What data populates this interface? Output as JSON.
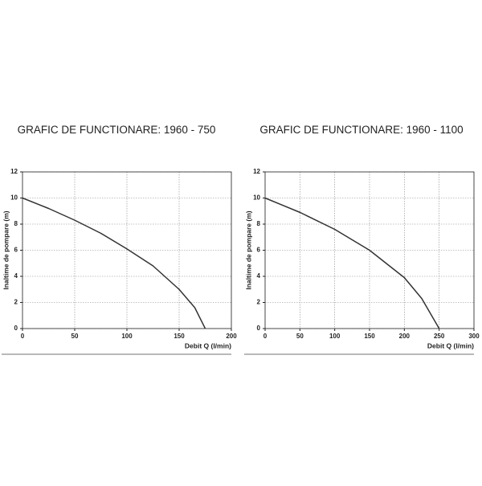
{
  "chart_data": [
    {
      "type": "line",
      "title": "GRAFIC DE FUNCTIONARE: 1960 - 750",
      "x_label": "Debit  Q (l/min)",
      "y_label": "Inaltime de pompare (m)",
      "x": [
        0,
        25,
        50,
        75,
        100,
        125,
        150,
        165,
        175
      ],
      "series": [
        {
          "color": "#333333",
          "values": [
            10,
            9.2,
            8.3,
            7.3,
            6.1,
            4.8,
            3.0,
            1.6,
            0
          ]
        }
      ],
      "xlim": [
        0,
        200
      ],
      "xticks": [
        0,
        50,
        100,
        150,
        200
      ],
      "ylim": [
        0,
        12
      ],
      "yticks": [
        0,
        2,
        4,
        6,
        8,
        10,
        12
      ],
      "grid": true
    },
    {
      "type": "line",
      "title": "GRAFIC DE FUNCTIONARE: 1960 - 1100",
      "x_label": "Debit  Q (l/min)",
      "y_label": "Inaltime de pompare (m)",
      "x": [
        0,
        50,
        100,
        150,
        200,
        225,
        250
      ],
      "series": [
        {
          "color": "#333333",
          "values": [
            10,
            8.9,
            7.6,
            6.0,
            3.9,
            2.3,
            0
          ]
        }
      ],
      "xlim": [
        0,
        300
      ],
      "xticks": [
        0,
        50,
        100,
        150,
        200,
        250,
        300
      ],
      "ylim": [
        0,
        12
      ],
      "yticks": [
        0,
        2,
        4,
        6,
        8,
        10,
        12
      ],
      "grid": true
    }
  ]
}
